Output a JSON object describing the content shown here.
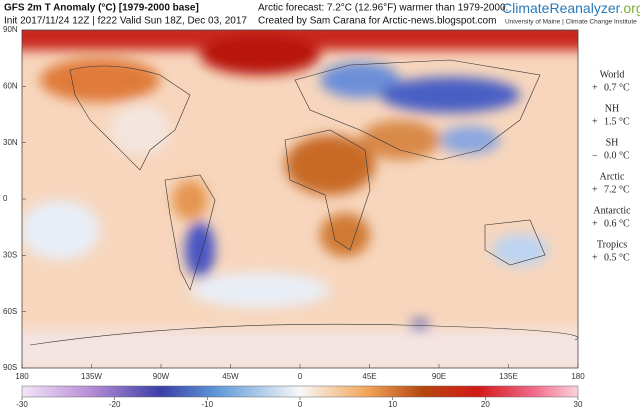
{
  "header": {
    "title": "GFS 2m T Anomaly (°C) [1979-2000 base]",
    "subtitle": "Init 2017/11/24 12Z | f222 Valid Sun 18Z, Dec 03, 2017"
  },
  "note": {
    "line1": "Arctic forecast: 7.2°C (12.96°F) warmer than 1979-2000.",
    "line2": "Created by Sam Carana for Arctic-news.blogspot.com"
  },
  "brand": {
    "name": "ClimateReanalyzer",
    "suffix": ".org",
    "tagline": "University of Maine | Climate Change Institute"
  },
  "regions": [
    {
      "name": "World",
      "sign": "+",
      "value": "0.7 °C"
    },
    {
      "name": "NH",
      "sign": "+",
      "value": "1.5 °C"
    },
    {
      "name": "SH",
      "sign": "−",
      "value": "0.0 °C"
    },
    {
      "name": "Arctic",
      "sign": "+",
      "value": "7.2 °C"
    },
    {
      "name": "Antarctic",
      "sign": "+",
      "value": "0.6 °C"
    },
    {
      "name": "Tropics",
      "sign": "+",
      "value": "0.5 °C"
    }
  ],
  "map": {
    "lat_labels": [
      "90N",
      "60N",
      "30N",
      "0",
      "30S",
      "60S",
      "90S"
    ],
    "lon_labels": [
      "180",
      "135W",
      "90W",
      "45W",
      "0",
      "45E",
      "90E",
      "135E",
      "180"
    ]
  },
  "colorbar": {
    "labels": [
      "-30",
      "-20",
      "-10",
      "0",
      "10",
      "20",
      "30"
    ]
  }
}
